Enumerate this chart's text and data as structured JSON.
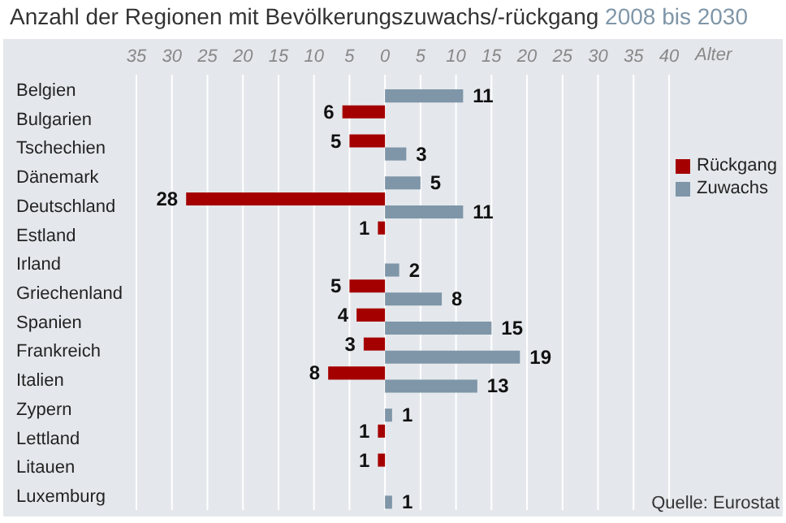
{
  "chart_data": {
    "type": "bar",
    "orientation": "horizontal",
    "title": "Anzahl der Regionen mit Bevölkerungszuwachs/-rückgang",
    "subtitle": "2008 bis 2030",
    "xlabel": "Alter",
    "annotations": [
      "Quelle: Eurostat"
    ],
    "categories": [
      "Belgien",
      "Bulgarien",
      "Tschechien",
      "Dänemark",
      "Deutschland",
      "Estland",
      "Irland",
      "Griechenland",
      "Spanien",
      "Frankreich",
      "Italien",
      "Zypern",
      "Lettland",
      "Litauen",
      "Luxemburg"
    ],
    "series": [
      {
        "name": "Rückgang",
        "color": "#a50000",
        "values": [
          null,
          6,
          5,
          null,
          28,
          1,
          null,
          5,
          4,
          3,
          8,
          null,
          1,
          1,
          null
        ],
        "base": [
          null,
          -6,
          -5,
          null,
          -28,
          -1,
          null,
          -5,
          -4,
          -3,
          -8,
          null,
          -1,
          -1,
          null
        ],
        "data_labels": true
      },
      {
        "name": "Zuwachs",
        "color": "#7f96a8",
        "values": [
          11,
          null,
          3,
          5,
          11,
          null,
          2,
          8,
          15,
          19,
          13,
          1,
          null,
          null,
          1
        ],
        "data_labels": true
      }
    ],
    "xlim": [
      -35,
      40
    ],
    "xticks": [
      {
        "value": -35,
        "label": "35"
      },
      {
        "value": -30,
        "label": "30"
      },
      {
        "value": -25,
        "label": "25"
      },
      {
        "value": -20,
        "label": "20"
      },
      {
        "value": -15,
        "label": "15"
      },
      {
        "value": -10,
        "label": "10"
      },
      {
        "value": -5,
        "label": "5"
      },
      0,
      5,
      10,
      15,
      20,
      25,
      30,
      35,
      40
    ],
    "grid": "x",
    "legend": "right"
  }
}
